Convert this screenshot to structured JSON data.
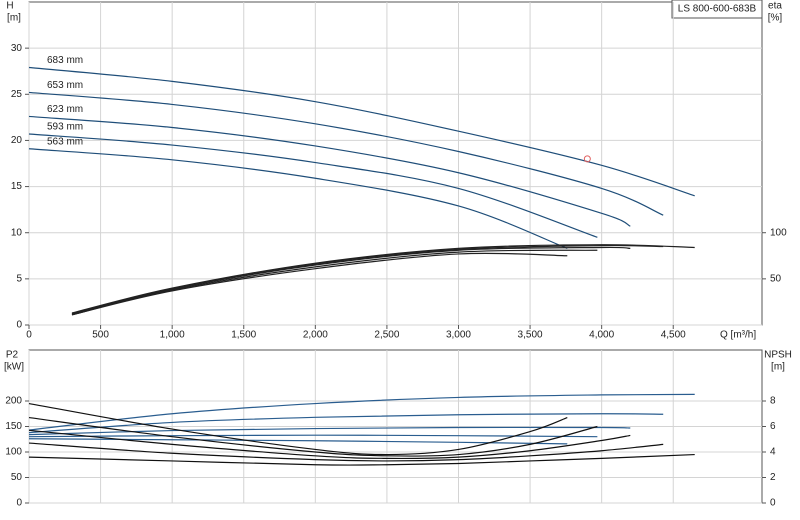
{
  "chart_data": [
    {
      "type": "line",
      "legend_label": "LS 800-600-683B",
      "ylabel": "H",
      "yunit": "[m]",
      "y2label": "eta",
      "y2unit": "[%]",
      "xlabel": "Q [m³/h]",
      "xlim": [
        0,
        5120
      ],
      "ylim": [
        0,
        35
      ],
      "y2lim": [
        0,
        350
      ],
      "grid": true,
      "xticks": [
        0,
        500,
        {
          "value": 1000,
          "label": "1,000"
        },
        {
          "value": 1500,
          "label": "1,500"
        },
        {
          "value": 2000,
          "label": "2,000"
        },
        {
          "value": 2500,
          "label": "2,500"
        },
        {
          "value": 3000,
          "label": "3,000"
        },
        {
          "value": 3500,
          "label": "3,500"
        },
        {
          "value": 4000,
          "label": "4,000"
        },
        {
          "value": 4500,
          "label": "4,500"
        }
      ],
      "yticks": [
        0,
        5,
        10,
        15,
        20,
        25,
        30
      ],
      "y2ticks": [
        50,
        100
      ],
      "duty_point": {
        "x": 3900,
        "y": 18,
        "color": "#e06060"
      },
      "series": [
        {
          "name": "683 mm",
          "color": "#1f4e79",
          "x": [
            0,
            1000,
            2000,
            3000,
            4000,
            4650
          ],
          "values": [
            27.9,
            26.4,
            24.2,
            21.0,
            17.3,
            14.0
          ]
        },
        {
          "name": "653 mm",
          "color": "#1f4e79",
          "x": [
            0,
            1000,
            2000,
            3000,
            4000,
            4430
          ],
          "values": [
            25.2,
            23.9,
            21.8,
            18.8,
            14.8,
            11.9
          ]
        },
        {
          "name": "623 mm",
          "color": "#1f4e79",
          "x": [
            0,
            1000,
            2000,
            3000,
            4000,
            4200
          ],
          "values": [
            22.6,
            21.4,
            19.4,
            16.5,
            12.1,
            10.7
          ]
        },
        {
          "name": "593 mm",
          "color": "#1f4e79",
          "x": [
            0,
            1000,
            2000,
            3000,
            3970
          ],
          "values": [
            20.7,
            19.5,
            17.6,
            14.8,
            9.5
          ]
        },
        {
          "name": "563 mm",
          "color": "#1f4e79",
          "x": [
            0,
            1000,
            2000,
            3000,
            3760
          ],
          "values": [
            19.1,
            17.9,
            15.9,
            12.9,
            8.3
          ]
        },
        {
          "color": "#222222",
          "axis": "y2",
          "x": [
            300,
            1000,
            2000,
            3000,
            4000,
            4650
          ],
          "values": [
            13,
            40,
            67,
            83,
            87,
            84
          ]
        },
        {
          "color": "#222222",
          "axis": "y2",
          "x": [
            300,
            1000,
            2000,
            3000,
            4000,
            4430
          ],
          "values": [
            12,
            39,
            66,
            82,
            86,
            85
          ]
        },
        {
          "color": "#222222",
          "axis": "y2",
          "x": [
            300,
            1000,
            2000,
            3000,
            4000,
            4200
          ],
          "values": [
            12,
            39,
            65,
            81,
            84,
            83
          ]
        },
        {
          "color": "#222222",
          "axis": "y2",
          "x": [
            300,
            1000,
            2000,
            3000,
            3970
          ],
          "values": [
            11,
            38,
            63,
            79,
            81
          ]
        },
        {
          "color": "#222222",
          "axis": "y2",
          "x": [
            300,
            1000,
            2000,
            3000,
            3760
          ],
          "values": [
            11,
            37,
            61,
            77,
            75
          ]
        }
      ]
    },
    {
      "type": "line",
      "ylabel": "P2",
      "yunit": "[kW]",
      "y2label": "NPSH",
      "y2unit": "[m]",
      "xlim": [
        0,
        5120
      ],
      "ylim": [
        0,
        300
      ],
      "y2lim": [
        0,
        12
      ],
      "grid": true,
      "yticks": [
        0,
        50,
        100,
        150,
        200
      ],
      "y2ticks": [
        0,
        2,
        4,
        6,
        8
      ],
      "series": [
        {
          "color": "#2a5d8f",
          "x": [
            0,
            1000,
            2000,
            3000,
            4000,
            4650
          ],
          "values": [
            143,
            175,
            195,
            207,
            212,
            213
          ]
        },
        {
          "color": "#2a5d8f",
          "x": [
            0,
            1000,
            2000,
            3000,
            4000,
            4430
          ],
          "values": [
            138,
            158,
            168,
            173,
            175,
            174
          ]
        },
        {
          "color": "#2a5d8f",
          "x": [
            0,
            1000,
            2000,
            3000,
            4000,
            4200
          ],
          "values": [
            134,
            142,
            146,
            148,
            148,
            147
          ]
        },
        {
          "color": "#2a5d8f",
          "x": [
            0,
            1000,
            2000,
            3000,
            3970
          ],
          "values": [
            130,
            132,
            133,
            132,
            130
          ]
        },
        {
          "color": "#2a5d8f",
          "x": [
            0,
            1000,
            2000,
            3000,
            3760
          ],
          "values": [
            126,
            124,
            122,
            119,
            116
          ]
        },
        {
          "color": "#111111",
          "axis": "y2",
          "x": [
            0,
            1000,
            2000,
            2500,
            3000,
            3500,
            4000,
            4650
          ],
          "values": [
            3.6,
            3.3,
            3.0,
            3.0,
            3.1,
            3.3,
            3.5,
            3.8
          ]
        },
        {
          "color": "#111111",
          "axis": "y2",
          "x": [
            0,
            1000,
            2000,
            2500,
            3000,
            3500,
            4000,
            4430
          ],
          "values": [
            4.7,
            3.9,
            3.4,
            3.3,
            3.4,
            3.7,
            4.1,
            4.6
          ]
        },
        {
          "color": "#111111",
          "axis": "y2",
          "x": [
            0,
            1000,
            2000,
            2500,
            3000,
            3500,
            4000,
            4200
          ],
          "values": [
            5.7,
            4.6,
            3.7,
            3.5,
            3.6,
            4.1,
            4.9,
            5.3
          ]
        },
        {
          "color": "#111111",
          "axis": "y2",
          "x": [
            0,
            1000,
            2000,
            2500,
            3000,
            3500,
            3970
          ],
          "values": [
            6.7,
            5.2,
            4.0,
            3.7,
            3.8,
            4.6,
            6.0
          ]
        },
        {
          "color": "#111111",
          "axis": "y2",
          "x": [
            0,
            1000,
            2000,
            2500,
            3000,
            3500,
            3760
          ],
          "values": [
            7.8,
            5.8,
            4.2,
            3.8,
            4.2,
            5.6,
            6.7
          ]
        }
      ]
    }
  ]
}
